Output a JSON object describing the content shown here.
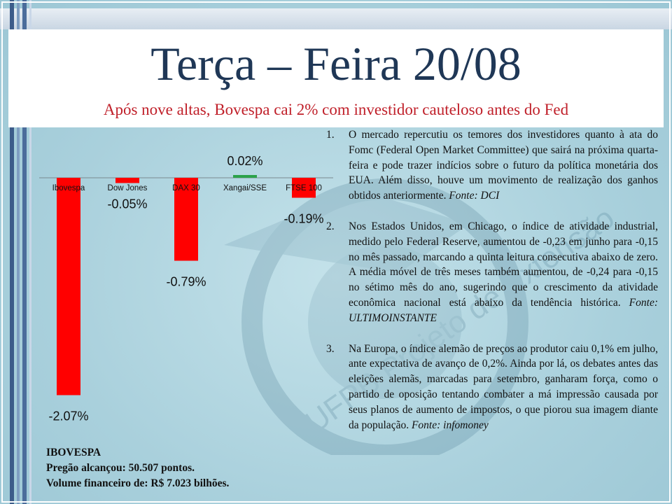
{
  "slide": {
    "title": "Terça – Feira 20/08",
    "subtitle": "Após nove altas, Bovespa cai 2% com investidor cauteloso antes do Fed"
  },
  "chart_data": {
    "type": "bar",
    "categories": [
      "Ibovespa",
      "Dow Jones",
      "DAX 30",
      "Xangai/SSE",
      "FTSE 100"
    ],
    "values": [
      -2.07,
      -0.05,
      -0.79,
      0.02,
      -0.19
    ],
    "value_labels": [
      "-2.07%",
      "-0.05%",
      "-0.79%",
      "0.02%",
      "-0.19%"
    ],
    "colors": {
      "negative": "#ff0000",
      "positive": "#2ca24a"
    },
    "ylim": [
      -2.2,
      0.2
    ],
    "grid": false,
    "legend": "none"
  },
  "ibovespa_info": {
    "heading": "IBOVESPA",
    "line1": "Pregão alcançou: 50.507 pontos.",
    "line2": "Volume financeiro de: R$ 7.023 bilhões."
  },
  "news": [
    {
      "number": "1.",
      "text": "O mercado repercutiu os temores dos investidores quanto à ata do Fomc (Federal Open Market Committee) que sairá na próxima quarta-feira e pode trazer indícios sobre o futuro da política monetária dos EUA. Além disso, houve um movimento de realização dos ganhos obtidos anteriormente. ",
      "source": "Fonte: DCI"
    },
    {
      "number": "2.",
      "text": "Nos Estados Unidos, em Chicago, o índice de atividade industrial, medido pelo Federal Reserve, aumentou de -0,23 em junho para -0,15 no mês passado, marcando a quinta leitura consecutiva abaixo de zero. A média móvel de três meses também aumentou, de -0,24 para -0,15 no sétimo mês do ano, sugerindo que o crescimento da atividade econômica nacional está abaixo da tendência histórica. ",
      "source": "Fonte: ULTIMOINSTANTE"
    },
    {
      "number": "3.",
      "text": "Na Europa, o índice alemão de preços ao produtor caiu 0,1% em julho, ante expectativa de avanço de 0,2%. Ainda por lá, os debates antes das eleições alemãs, marcadas para setembro, ganharam força, como o partido de oposição tentando combater a má impressão causada por seus planos de aumento de impostos, o que piorou sua imagem diante da população. ",
      "source": "Fonte: infomoney"
    }
  ],
  "watermark": {
    "text": "UFPB Projeto de Extensão"
  }
}
